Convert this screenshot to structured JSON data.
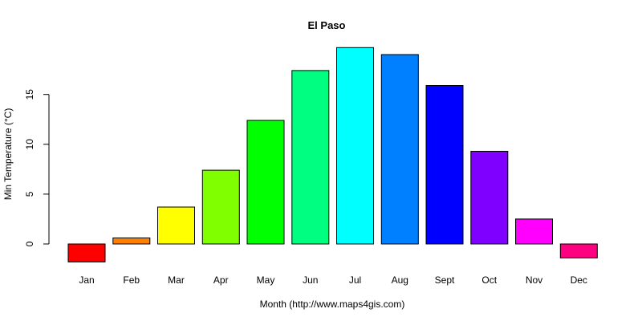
{
  "chart_data": {
    "type": "bar",
    "title": "El Paso",
    "xlabel": "Month (http://www.maps4gis.com)",
    "ylabel": "Min Temperature (°C)",
    "categories": [
      "Jan",
      "Feb",
      "Mar",
      "Apr",
      "May",
      "Jun",
      "Jul",
      "Aug",
      "Sept",
      "Oct",
      "Nov",
      "Dec"
    ],
    "values": [
      -1.8,
      0.6,
      3.7,
      7.4,
      12.4,
      17.4,
      19.7,
      19.0,
      15.9,
      9.3,
      2.5,
      -1.4
    ],
    "colors": [
      "#FF0000",
      "#FF8000",
      "#FFFF00",
      "#80FF00",
      "#00FF00",
      "#00FF80",
      "#00FFFF",
      "#0080FF",
      "#0000FF",
      "#8000FF",
      "#FF00FF",
      "#FF0080"
    ],
    "yticks": [
      0,
      5,
      10,
      15
    ],
    "ylim": [
      -2.3,
      20.2
    ],
    "grid": false,
    "legend": "none"
  }
}
